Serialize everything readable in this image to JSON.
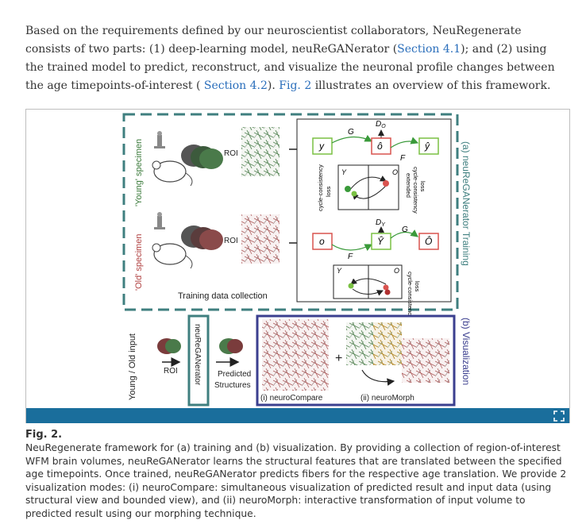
{
  "paragraph": {
    "t1": "Based on the requirements defined by our neuroscientist collaborators, NeuRegenerate consists of two parts: (1) deep-learning model, neuReGANerator (",
    "link1": "Section 4.1",
    "t2": "); and (2) using the trained model to predict, reconstruct, and visualize the neuronal profile changes between the age timepoints-of-interest ( ",
    "link2": "Section 4.2",
    "t3": "). ",
    "link3": "Fig. 2",
    "t4": " illustrates an overview of this framework."
  },
  "figure": {
    "young_label": "'Young' specimen",
    "old_label": "'Old' specimen",
    "roi": "ROI",
    "training_collection": "Training data collection",
    "panel_a_title": "(a) neuReGANerator Training",
    "panel_b_title": "(b) Visualization",
    "young_old_input": "Young / Old input",
    "neuReGANerator": "neuReGANerator",
    "predicted": "Predicted",
    "structures": "Structures",
    "neurocompare": "(i) neuroCompare",
    "neuromorph": "(ii) neuroMorph",
    "plus": "+",
    "sym_y": "y",
    "sym_o_hat": "ô",
    "sym_y_hat": "ŷ",
    "sym_o": "o",
    "sym_Y_hat": "Ŷ",
    "sym_O_hat": "Ô",
    "sym_G": "G",
    "sym_F": "F",
    "sym_Do": "D",
    "sym_Do_sub": "O",
    "sym_Dy": "D",
    "sym_Dy_sub": "Y",
    "sym_Y": "Y",
    "sym_O": "O",
    "cycle_loss": "cycle-consistency",
    "loss": "loss",
    "ext_cycle_1": "extended",
    "ext_cycle_2": "cycle-consistency",
    "ext_cycle_3": "loss"
  },
  "caption": {
    "label": "Fig. 2.",
    "text": "NeuRegenerate framework for (a) training and (b) visualization. By providing a collection of region-of-interest WFM brain volumes, neuReGANerator learns the structural features that are translated between the specified age timepoints. Once trained, neuReGANerator predicts fibers for the respective age translation. We provide 2 visualization modes: (i) neuroCompare: simultaneous visualization of predicted result and input data (using structural view and bounded view), and (ii) neuroMorph: interactive transformation of input volume to predicted result using our morphing technique."
  },
  "colors": {
    "link": "#2a6ebb",
    "bar": "#1a6e9c",
    "panel_a_border": "#3f7f7f",
    "panel_b_border": "#3b3f8f",
    "gen_box": "#7ac143",
    "disc_box": "#d9534f"
  }
}
